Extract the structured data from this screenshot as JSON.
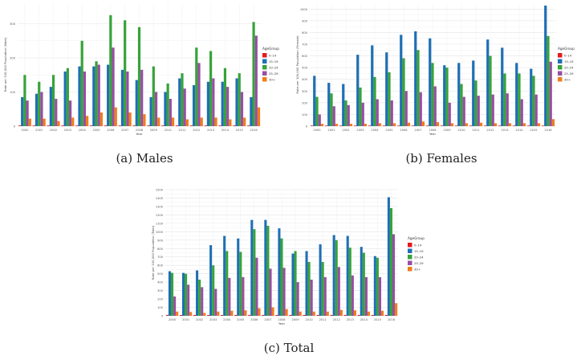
{
  "chart_data": [
    {
      "type": "bar",
      "caption": "(a) Males",
      "xlabel": "Year",
      "ylabel": "Rate per 100,000 Population (Male)",
      "ylim": [
        0,
        360
      ],
      "yticks": [
        0,
        100,
        200,
        300
      ],
      "categories": [
        "2000",
        "2001",
        "2002",
        "2003",
        "2004",
        "2005",
        "2006",
        "2007",
        "2008",
        "2009",
        "2010",
        "2011",
        "2012",
        "2013",
        "2014",
        "2015",
        "2016"
      ],
      "legend_title": "AgeGroup",
      "series": [
        {
          "name": "0–14",
          "color": "#e41a1c",
          "values": [
            2,
            2,
            2,
            2,
            2,
            2,
            2,
            2,
            2,
            2,
            2,
            2,
            2,
            2,
            2,
            2,
            2
          ]
        },
        {
          "name": "15–19",
          "color": "#1f6fb4",
          "values": [
            85,
            95,
            115,
            160,
            175,
            175,
            180,
            165,
            135,
            85,
            100,
            140,
            120,
            130,
            130,
            140,
            85
          ]
        },
        {
          "name": "20–24",
          "color": "#37a33a",
          "values": [
            150,
            130,
            150,
            170,
            250,
            190,
            325,
            310,
            290,
            175,
            125,
            155,
            230,
            220,
            170,
            155,
            305
          ]
        },
        {
          "name": "25–29",
          "color": "#984ea3",
          "values": [
            75,
            100,
            80,
            75,
            160,
            180,
            230,
            160,
            165,
            100,
            80,
            110,
            185,
            140,
            115,
            100,
            265
          ]
        },
        {
          "name": "30+",
          "color": "#f07d1a",
          "values": [
            22,
            22,
            15,
            25,
            30,
            40,
            55,
            40,
            35,
            25,
            25,
            20,
            25,
            25,
            20,
            25,
            55
          ]
        }
      ]
    },
    {
      "type": "bar",
      "caption": "(b) Females",
      "xlabel": "Year",
      "ylabel": "Rate per 100,000 Population (Female)",
      "ylim": [
        0,
        1050
      ],
      "yticks": [
        0,
        100,
        200,
        300,
        400,
        500,
        600,
        700,
        800,
        900,
        1000
      ],
      "categories": [
        "2000",
        "2001",
        "2002",
        "2003",
        "2004",
        "2005",
        "2006",
        "2007",
        "2008",
        "2009",
        "2010",
        "2011",
        "2012",
        "2013",
        "2014",
        "2015",
        "2016"
      ],
      "legend_title": "AgeGroup",
      "series": [
        {
          "name": "0–14",
          "color": "#e41a1c",
          "values": [
            5,
            5,
            5,
            5,
            5,
            5,
            5,
            5,
            5,
            5,
            5,
            5,
            5,
            5,
            5,
            5,
            5
          ]
        },
        {
          "name": "15–19",
          "color": "#1f6fb4",
          "values": [
            430,
            370,
            360,
            610,
            690,
            630,
            780,
            810,
            750,
            520,
            540,
            560,
            740,
            670,
            540,
            490,
            1030
          ]
        },
        {
          "name": "20–24",
          "color": "#37a33a",
          "values": [
            250,
            280,
            220,
            330,
            420,
            460,
            580,
            650,
            540,
            500,
            360,
            390,
            600,
            450,
            450,
            430,
            770
          ]
        },
        {
          "name": "25–29",
          "color": "#984ea3",
          "values": [
            100,
            170,
            180,
            200,
            230,
            220,
            300,
            290,
            340,
            200,
            250,
            260,
            270,
            280,
            230,
            270,
            550
          ]
        },
        {
          "name": "30+",
          "color": "#f07d1a",
          "values": [
            20,
            20,
            20,
            20,
            25,
            25,
            30,
            40,
            35,
            25,
            25,
            30,
            25,
            25,
            25,
            25,
            60
          ]
        }
      ]
    },
    {
      "type": "bar",
      "caption": "(c) Total",
      "xlabel": "Year",
      "ylabel": "Rate per 100,000 Population (Total)",
      "ylim": [
        0,
        1500
      ],
      "yticks": [
        0,
        100,
        200,
        300,
        400,
        500,
        600,
        700,
        800,
        900,
        1000,
        1100,
        1200,
        1300,
        1400,
        1500
      ],
      "categories": [
        "2000",
        "2001",
        "2002",
        "2003",
        "2004",
        "2005",
        "2006",
        "2007",
        "2008",
        "2009",
        "2010",
        "2011",
        "2012",
        "2013",
        "2014",
        "2015",
        "2016"
      ],
      "legend_title": "AgeGroup",
      "series": [
        {
          "name": "0–14",
          "color": "#e41a1c",
          "values": [
            10,
            10,
            10,
            10,
            10,
            10,
            10,
            10,
            10,
            10,
            10,
            10,
            10,
            10,
            10,
            10,
            10
          ]
        },
        {
          "name": "15–19",
          "color": "#1f6fb4",
          "values": [
            530,
            510,
            540,
            840,
            950,
            920,
            1140,
            1140,
            1040,
            740,
            770,
            850,
            960,
            950,
            820,
            710,
            1410
          ]
        },
        {
          "name": "20–24",
          "color": "#37a33a",
          "values": [
            510,
            500,
            430,
            600,
            770,
            760,
            1030,
            1070,
            920,
            770,
            640,
            640,
            900,
            810,
            750,
            690,
            1280
          ]
        },
        {
          "name": "25–29",
          "color": "#984ea3",
          "values": [
            230,
            370,
            340,
            320,
            450,
            460,
            690,
            560,
            570,
            400,
            430,
            460,
            580,
            480,
            460,
            460,
            970
          ]
        },
        {
          "name": "30+",
          "color": "#f07d1a",
          "values": [
            50,
            45,
            35,
            50,
            60,
            65,
            90,
            100,
            80,
            50,
            50,
            50,
            70,
            65,
            50,
            60,
            150
          ]
        }
      ]
    }
  ]
}
